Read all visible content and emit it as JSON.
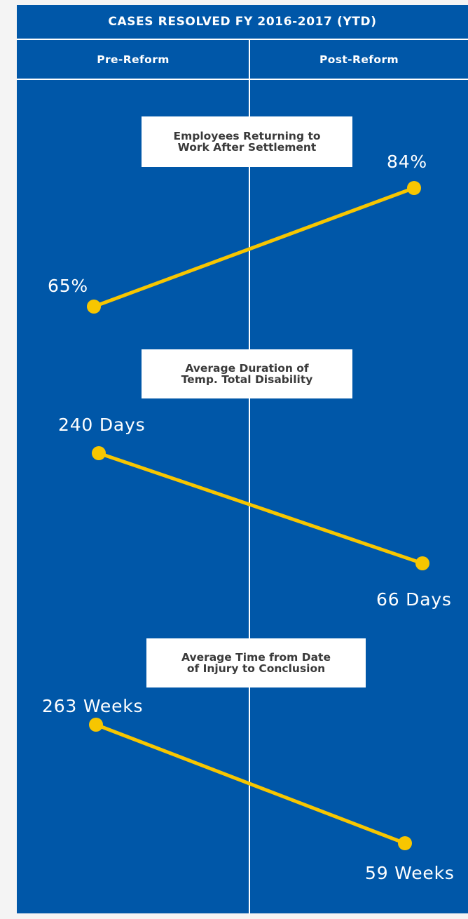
{
  "header": {
    "title": "CASES RESOLVED FY 2016-2017 (YTD)",
    "col_pre": "Pre-Reform",
    "col_post": "Post-Reform"
  },
  "colors": {
    "background": "#0057a8",
    "line": "#f7c600",
    "label_bg": "#ffffff",
    "label_text": "#3a3a3a",
    "text": "#ffffff"
  },
  "chart_data": [
    {
      "type": "line",
      "title": "Employees Returning to\nWork After Settlement",
      "categories": [
        "Pre-Reform",
        "Post-Reform"
      ],
      "values": [
        65,
        84
      ],
      "unit": "%",
      "value_labels": [
        "65%",
        "84%"
      ]
    },
    {
      "type": "line",
      "title": "Average Duration of\nTemp. Total Disability",
      "categories": [
        "Pre-Reform",
        "Post-Reform"
      ],
      "values": [
        240,
        66
      ],
      "unit": "Days",
      "value_labels": [
        "240 Days",
        "66 Days"
      ]
    },
    {
      "type": "line",
      "title": "Average Time from Date\nof Injury to Conclusion",
      "categories": [
        "Pre-Reform",
        "Post-Reform"
      ],
      "values": [
        263,
        59
      ],
      "unit": "Weeks",
      "value_labels": [
        "263 Weeks",
        "59 Weeks"
      ]
    }
  ]
}
